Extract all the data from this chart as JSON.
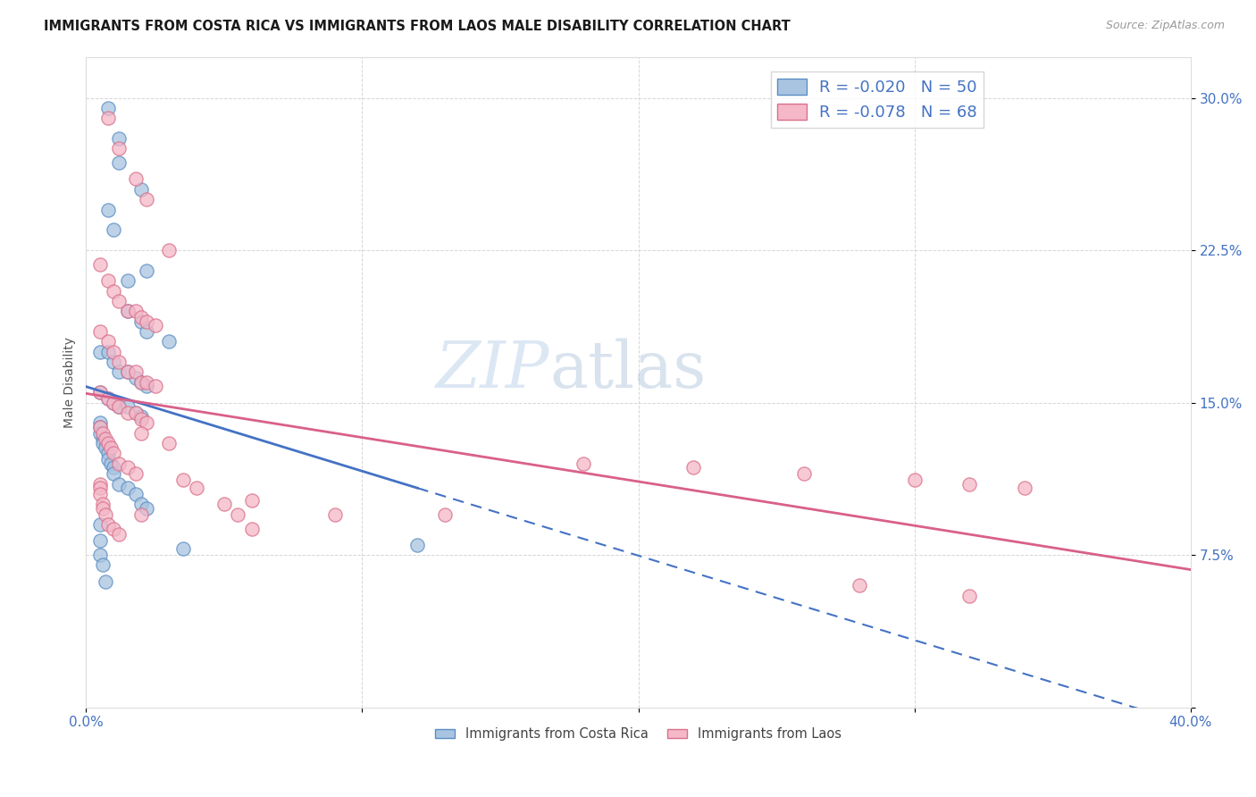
{
  "title": "IMMIGRANTS FROM COSTA RICA VS IMMIGRANTS FROM LAOS MALE DISABILITY CORRELATION CHART",
  "source": "Source: ZipAtlas.com",
  "ylabel": "Male Disability",
  "xlim": [
    0.0,
    0.4
  ],
  "ylim": [
    0.0,
    0.32
  ],
  "ytick_vals": [
    0.0,
    0.075,
    0.15,
    0.225,
    0.3
  ],
  "ytick_labels": [
    "",
    "7.5%",
    "15.0%",
    "22.5%",
    "30.0%"
  ],
  "xtick_vals": [
    0.0,
    0.1,
    0.2,
    0.3,
    0.4
  ],
  "xtick_labels": [
    "0.0%",
    "",
    "",
    "",
    "40.0%"
  ],
  "legend_r1": "R = -0.020",
  "legend_n1": "N = 50",
  "legend_r2": "R = -0.078",
  "legend_n2": "N = 68",
  "color_cr": "#a8c4e0",
  "color_laos": "#f4b8c8",
  "edge_cr": "#5b8ec4",
  "edge_laos": "#d9708a",
  "trend_cr": "#4472c4",
  "trend_laos": "#d9608a",
  "background": "#ffffff",
  "grid_color": "#cccccc",
  "watermark_zip": "#c8d8ed",
  "watermark_atlas": "#b8cce4",
  "title_color": "#1a1a1a",
  "tick_color": "#4472c4",
  "ylabel_color": "#555555",
  "costa_rica_x": [
    0.008,
    0.012,
    0.012,
    0.02,
    0.022,
    0.008,
    0.01,
    0.015,
    0.015,
    0.02,
    0.022,
    0.03,
    0.005,
    0.008,
    0.01,
    0.012,
    0.015,
    0.018,
    0.02,
    0.022,
    0.005,
    0.008,
    0.01,
    0.012,
    0.015,
    0.018,
    0.02,
    0.005,
    0.005,
    0.005,
    0.006,
    0.006,
    0.007,
    0.008,
    0.008,
    0.009,
    0.01,
    0.01,
    0.012,
    0.015,
    0.018,
    0.02,
    0.022,
    0.005,
    0.005,
    0.005,
    0.006,
    0.007,
    0.035,
    0.12
  ],
  "costa_rica_y": [
    0.295,
    0.28,
    0.268,
    0.255,
    0.215,
    0.245,
    0.235,
    0.21,
    0.195,
    0.19,
    0.185,
    0.18,
    0.175,
    0.175,
    0.17,
    0.165,
    0.165,
    0.162,
    0.16,
    0.158,
    0.155,
    0.152,
    0.15,
    0.148,
    0.148,
    0.145,
    0.143,
    0.14,
    0.138,
    0.135,
    0.132,
    0.13,
    0.128,
    0.125,
    0.122,
    0.12,
    0.118,
    0.115,
    0.11,
    0.108,
    0.105,
    0.1,
    0.098,
    0.09,
    0.082,
    0.075,
    0.07,
    0.062,
    0.078,
    0.08
  ],
  "laos_x": [
    0.008,
    0.012,
    0.018,
    0.022,
    0.03,
    0.005,
    0.008,
    0.01,
    0.012,
    0.015,
    0.018,
    0.02,
    0.022,
    0.025,
    0.005,
    0.008,
    0.01,
    0.012,
    0.015,
    0.018,
    0.02,
    0.022,
    0.025,
    0.005,
    0.008,
    0.01,
    0.012,
    0.015,
    0.018,
    0.02,
    0.022,
    0.005,
    0.006,
    0.007,
    0.008,
    0.009,
    0.01,
    0.012,
    0.015,
    0.018,
    0.005,
    0.005,
    0.005,
    0.006,
    0.006,
    0.007,
    0.008,
    0.01,
    0.012,
    0.02,
    0.03,
    0.035,
    0.04,
    0.05,
    0.055,
    0.06,
    0.09,
    0.13,
    0.18,
    0.22,
    0.26,
    0.3,
    0.32,
    0.34,
    0.28,
    0.02,
    0.32,
    0.06
  ],
  "laos_y": [
    0.29,
    0.275,
    0.26,
    0.25,
    0.225,
    0.218,
    0.21,
    0.205,
    0.2,
    0.195,
    0.195,
    0.192,
    0.19,
    0.188,
    0.185,
    0.18,
    0.175,
    0.17,
    0.165,
    0.165,
    0.16,
    0.16,
    0.158,
    0.155,
    0.152,
    0.15,
    0.148,
    0.145,
    0.145,
    0.142,
    0.14,
    0.138,
    0.135,
    0.132,
    0.13,
    0.128,
    0.125,
    0.12,
    0.118,
    0.115,
    0.11,
    0.108,
    0.105,
    0.1,
    0.098,
    0.095,
    0.09,
    0.088,
    0.085,
    0.135,
    0.13,
    0.112,
    0.108,
    0.1,
    0.095,
    0.088,
    0.095,
    0.095,
    0.12,
    0.118,
    0.115,
    0.112,
    0.11,
    0.108,
    0.06,
    0.095,
    0.055,
    0.102
  ]
}
